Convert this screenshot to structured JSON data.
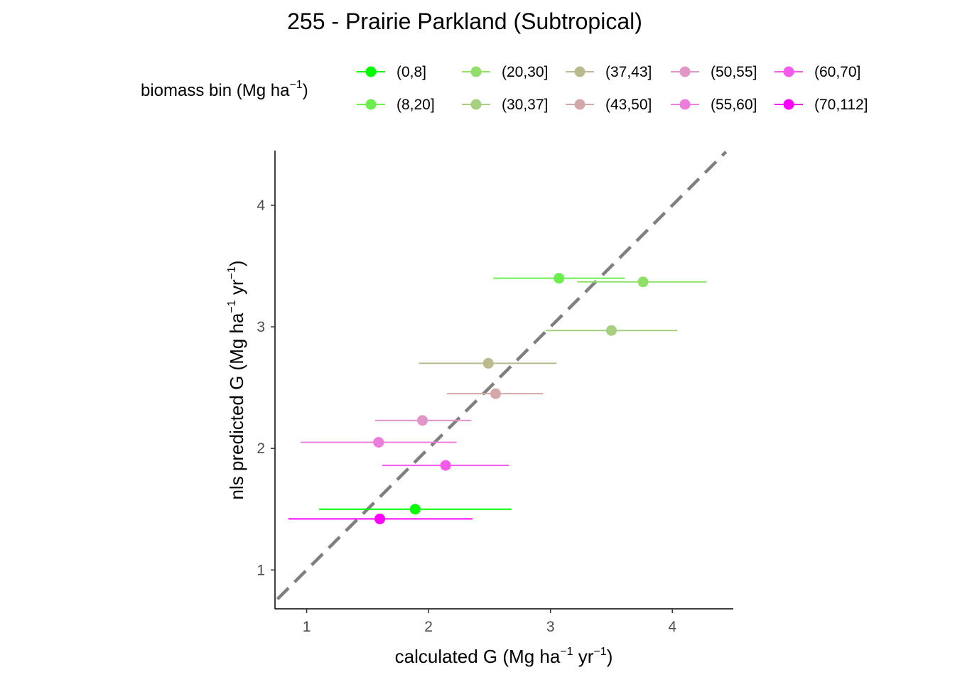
{
  "chart_data": {
    "type": "scatter",
    "title": "255 - Prairie Parkland (Subtropical)",
    "xlabel": {
      "text": "calculated G (Mg ha",
      "sup1": "−1",
      "mid": " yr",
      "sup2": "−1",
      "end": ")"
    },
    "ylabel": {
      "text": "nls predicted G (Mg ha",
      "sup1": "−1",
      "mid": " yr",
      "sup2": "−1",
      "end": ")"
    },
    "xlim": [
      0.74,
      4.5
    ],
    "ylim": [
      0.68,
      4.45
    ],
    "xticks": [
      "1",
      "2",
      "3",
      "4"
    ],
    "yticks": [
      "1",
      "2",
      "3",
      "4"
    ],
    "grid": false,
    "reference_line": {
      "style": "dashed",
      "color": "#7f7f7f",
      "slope": 1,
      "intercept": 0
    },
    "legend": {
      "placement": "top",
      "title": {
        "text": "biomass bin (Mg ha",
        "sup": "−1",
        "end": ")"
      },
      "entries": [
        {
          "label": "(0,8]",
          "color": "#00FF00"
        },
        {
          "label": "(8,20]",
          "color": "#6CEF4E"
        },
        {
          "label": "(20,30]",
          "color": "#8FDF69"
        },
        {
          "label": "(30,37]",
          "color": "#A6CF7E"
        },
        {
          "label": "(37,43]",
          "color": "#BABA8F"
        },
        {
          "label": "(43,50]",
          "color": "#D4A8A8"
        },
        {
          "label": "(50,55]",
          "color": "#E196C7"
        },
        {
          "label": "(55,60]",
          "color": "#EC7DDC"
        },
        {
          "label": "(60,70]",
          "color": "#F55BEB"
        },
        {
          "label": "(70,112]",
          "color": "#FF00FF"
        }
      ]
    },
    "series": [
      {
        "name": "(0,8]",
        "x": 1.89,
        "y": 1.5,
        "xmin": 1.1,
        "xmax": 2.68
      },
      {
        "name": "(8,20]",
        "x": 3.07,
        "y": 3.4,
        "xmin": 2.53,
        "xmax": 3.61
      },
      {
        "name": "(20,30]",
        "x": 3.76,
        "y": 3.37,
        "xmin": 3.22,
        "xmax": 4.28
      },
      {
        "name": "(30,37]",
        "x": 3.5,
        "y": 2.97,
        "xmin": 2.96,
        "xmax": 4.04
      },
      {
        "name": "(37,43]",
        "x": 2.49,
        "y": 2.7,
        "xmin": 1.92,
        "xmax": 3.05
      },
      {
        "name": "(43,50]",
        "x": 2.55,
        "y": 2.45,
        "xmin": 2.15,
        "xmax": 2.94
      },
      {
        "name": "(50,55]",
        "x": 1.95,
        "y": 2.23,
        "xmin": 1.56,
        "xmax": 2.35
      },
      {
        "name": "(55,60]",
        "x": 1.59,
        "y": 2.05,
        "xmin": 0.95,
        "xmax": 2.23
      },
      {
        "name": "(60,70]",
        "x": 2.14,
        "y": 1.86,
        "xmin": 1.62,
        "xmax": 2.66
      },
      {
        "name": "(70,112]",
        "x": 1.6,
        "y": 1.42,
        "xmin": 0.85,
        "xmax": 2.36
      }
    ]
  }
}
